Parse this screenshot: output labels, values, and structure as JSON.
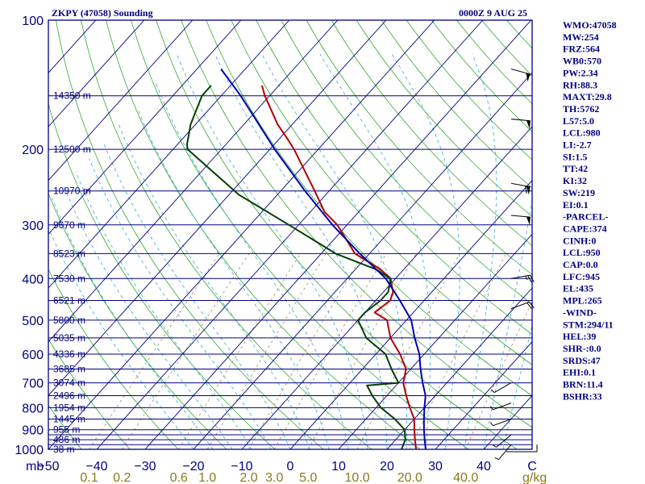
{
  "chart_data": {
    "type": "line",
    "title": "ZKPY (47058) Sounding",
    "subtitle": "0000Z  9 AUG 25",
    "x_unit": "mb",
    "mix_unit": "g/kg",
    "x_ticks": [
      "−50",
      "−40",
      "−30",
      "−20",
      "−10",
      "0",
      "10",
      "20",
      "30",
      "40",
      "C"
    ],
    "mixing_ratio_labels": [
      "0.1",
      "0.2",
      "0.6",
      "1.0",
      "2.0",
      "3.0",
      "5.0",
      "10.0",
      "20.0",
      "40.0"
    ],
    "xlim": [
      -50,
      50
    ],
    "pressure_levels": [
      100,
      150,
      200,
      250,
      300,
      350,
      400,
      450,
      500,
      550,
      600,
      650,
      700,
      750,
      800,
      850,
      900,
      925,
      950,
      975,
      1000
    ],
    "pressure_labels": [
      100,
      200,
      300,
      400,
      500,
      600,
      700,
      800,
      900,
      1000
    ],
    "height_labels": [
      {
        "p": 150,
        "label": "14350 m"
      },
      {
        "p": 200,
        "label": "12500 m"
      },
      {
        "p": 250,
        "label": "10970 m"
      },
      {
        "p": 300,
        "label": "9670 m"
      },
      {
        "p": 350,
        "label": "8523 m"
      },
      {
        "p": 400,
        "label": "7530 m"
      },
      {
        "p": 450,
        "label": "6521 m"
      },
      {
        "p": 500,
        "label": "5800 m"
      },
      {
        "p": 550,
        "label": "5035 m"
      },
      {
        "p": 600,
        "label": "4336 m"
      },
      {
        "p": 650,
        "label": "3685 m"
      },
      {
        "p": 700,
        "label": "3074 m"
      },
      {
        "p": 750,
        "label": "2496 m"
      },
      {
        "p": 800,
        "label": "1954 m"
      },
      {
        "p": 850,
        "label": "1445 m"
      },
      {
        "p": 900,
        "label": "955 m"
      },
      {
        "p": 950,
        "label": "486 m"
      },
      {
        "p": 1000,
        "label": "38 m"
      }
    ],
    "series": [
      {
        "color": "#b00000",
        "points": [
          [
            142,
            -73.5
          ],
          [
            150,
            -71
          ],
          [
            175,
            -63
          ],
          [
            190,
            -58
          ],
          [
            200,
            -55
          ],
          [
            250,
            -43
          ],
          [
            280,
            -37
          ],
          [
            300,
            -32
          ],
          [
            350,
            -23
          ],
          [
            380,
            -15
          ],
          [
            400,
            -11
          ],
          [
            430,
            -8
          ],
          [
            450,
            -7
          ],
          [
            480,
            -8
          ],
          [
            500,
            -4
          ],
          [
            550,
            0
          ],
          [
            600,
            5
          ],
          [
            650,
            9
          ],
          [
            700,
            11
          ],
          [
            750,
            14
          ],
          [
            800,
            17
          ],
          [
            850,
            20
          ],
          [
            900,
            22
          ],
          [
            950,
            24
          ],
          [
            1000,
            26
          ]
        ]
      },
      {
        "color": "#004000",
        "points": [
          [
            142,
            -84
          ],
          [
            150,
            -84
          ],
          [
            175,
            -81
          ],
          [
            195,
            -78
          ],
          [
            200,
            -77
          ],
          [
            255,
            -58
          ],
          [
            300,
            -42
          ],
          [
            350,
            -27
          ],
          [
            380,
            -16
          ],
          [
            400,
            -11
          ],
          [
            430,
            -9
          ],
          [
            450,
            -9
          ],
          [
            480,
            -10
          ],
          [
            500,
            -10
          ],
          [
            550,
            -5
          ],
          [
            600,
            2
          ],
          [
            650,
            6
          ],
          [
            700,
            10
          ],
          [
            710,
            4
          ],
          [
            750,
            7
          ],
          [
            800,
            11
          ],
          [
            850,
            16
          ],
          [
            900,
            20
          ],
          [
            950,
            22
          ],
          [
            1000,
            23
          ]
        ]
      },
      {
        "color": "#0000b0",
        "points": [
          [
            130,
            -85
          ],
          [
            150,
            -76
          ],
          [
            200,
            -59
          ],
          [
            250,
            -45
          ],
          [
            300,
            -33
          ],
          [
            350,
            -22
          ],
          [
            400,
            -12
          ],
          [
            450,
            -5
          ],
          [
            500,
            1
          ],
          [
            550,
            5
          ],
          [
            600,
            9
          ],
          [
            650,
            12
          ],
          [
            700,
            15
          ],
          [
            750,
            18
          ],
          [
            800,
            20
          ],
          [
            850,
            22
          ],
          [
            900,
            24
          ],
          [
            950,
            26
          ],
          [
            1000,
            28
          ]
        ]
      }
    ],
    "wind_barbs": [
      {
        "p": 130,
        "dir": 105,
        "kt": 50
      },
      {
        "p": 170,
        "dir": 95,
        "kt": 50
      },
      {
        "p": 240,
        "dir": 100,
        "kt": 60
      },
      {
        "p": 285,
        "dir": 95,
        "kt": 50
      },
      {
        "p": 400,
        "dir": 80,
        "kt": 25
      },
      {
        "p": 470,
        "dir": 70,
        "kt": 20
      },
      {
        "p": 700,
        "dir": 240,
        "kt": 5
      },
      {
        "p": 780,
        "dir": 250,
        "kt": 5
      },
      {
        "p": 850,
        "dir": 250,
        "kt": 5
      },
      {
        "p": 925,
        "dir": 230,
        "kt": 5
      },
      {
        "p": 975,
        "dir": 220,
        "kt": 5
      }
    ],
    "indices": [
      "WMO:47058",
      "MW:254",
      "FRZ:564",
      "WB0:570",
      "PW:2.34",
      "RH:88.3",
      "MAXT:29.8",
      "TH:5762",
      "L57:5.0",
      "LCL:980",
      "LI:-2.7",
      "SI:1.5",
      "TT:42",
      "KI:32",
      "SW:219",
      "EI:0.1",
      "-PARCEL-",
      "CAPE:374",
      "CINH:0",
      "LCL:950",
      "CAP:0.0",
      "LFC:945",
      "EL:435",
      "MPL:265",
      "-WIND-",
      "STM:294/11",
      "HEL:39",
      "SHR-:0.0",
      "SRDS:47",
      "EHI:0.1",
      "BRN:11.4",
      "BSHR:33"
    ]
  }
}
